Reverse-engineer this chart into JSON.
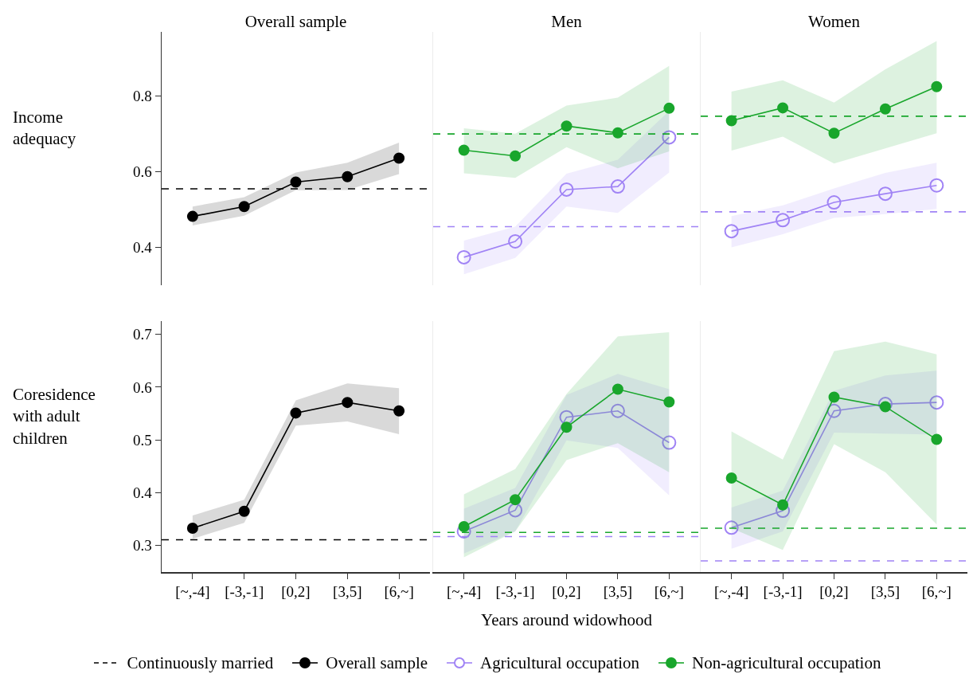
{
  "chart_data": [
    {
      "type": "line",
      "title": "Overall sample",
      "ylabel": "Income adequacy",
      "categories": [
        "[~,-4]",
        "[-3,-1]",
        "[0,2]",
        "[3,5]",
        "[6,~]"
      ],
      "ylim": [
        0.3,
        0.97
      ],
      "yticks": [
        0.4,
        0.6,
        0.8
      ],
      "tick_labels": "y",
      "grid": false,
      "marker": "circle",
      "legend": "bottom",
      "series": [
        {
          "name": "Overall sample",
          "color": "#000000",
          "values": [
            0.482,
            0.508,
            0.573,
            0.587,
            0.636
          ],
          "lower": [
            0.458,
            0.484,
            0.551,
            0.552,
            0.594
          ],
          "upper": [
            0.508,
            0.533,
            0.598,
            0.624,
            0.677
          ]
        }
      ],
      "ref_lines": [
        {
          "axis": "y",
          "value": 0.555,
          "label": "Continuously married",
          "color": "#000000",
          "line_style": "dashed"
        }
      ]
    },
    {
      "type": "line",
      "title": "Men",
      "categories": [
        "[~,-4]",
        "[-3,-1]",
        "[0,2]",
        "[3,5]",
        "[6,~]"
      ],
      "ylim": [
        0.3,
        0.97
      ],
      "yticks": [
        0.4,
        0.6,
        0.8
      ],
      "tick_labels": false,
      "grid": false,
      "marker": "circle",
      "legend": "bottom",
      "series": [
        {
          "name": "Agricultural occupation",
          "color": "#a083f5",
          "marker": "circle-open",
          "values": [
            0.374,
            0.416,
            0.553,
            0.561,
            0.691
          ],
          "lower": [
            0.329,
            0.372,
            0.508,
            0.491,
            0.598
          ],
          "upper": [
            0.418,
            0.455,
            0.595,
            0.632,
            0.761
          ]
        },
        {
          "name": "Non-agricultural occupation",
          "color": "#19a62c",
          "values": [
            0.657,
            0.642,
            0.721,
            0.703,
            0.768
          ],
          "lower": [
            0.596,
            0.584,
            0.665,
            0.609,
            0.654
          ],
          "upper": [
            0.715,
            0.701,
            0.775,
            0.796,
            0.88
          ]
        }
      ],
      "ref_lines": [
        {
          "axis": "y",
          "value": 0.7,
          "color": "#19a62c",
          "line_style": "dashed"
        },
        {
          "axis": "y",
          "value": 0.455,
          "color": "#a083f5",
          "line_style": "dashed"
        }
      ]
    },
    {
      "type": "line",
      "title": "Women",
      "categories": [
        "[~,-4]",
        "[-3,-1]",
        "[0,2]",
        "[3,5]",
        "[6,~]"
      ],
      "ylim": [
        0.3,
        0.97
      ],
      "yticks": [
        0.4,
        0.6,
        0.8
      ],
      "tick_labels": false,
      "grid": false,
      "marker": "circle",
      "legend": "bottom",
      "series": [
        {
          "name": "Agricultural occupation",
          "color": "#a083f5",
          "marker": "circle-open",
          "values": [
            0.443,
            0.472,
            0.519,
            0.542,
            0.564
          ],
          "lower": [
            0.4,
            0.435,
            0.478,
            0.488,
            0.502
          ],
          "upper": [
            0.483,
            0.511,
            0.556,
            0.597,
            0.624
          ]
        },
        {
          "name": "Non-agricultural occupation",
          "color": "#19a62c",
          "values": [
            0.735,
            0.769,
            0.702,
            0.766,
            0.825
          ],
          "lower": [
            0.656,
            0.693,
            0.622,
            0.662,
            0.702
          ],
          "upper": [
            0.812,
            0.842,
            0.783,
            0.871,
            0.946
          ]
        }
      ],
      "ref_lines": [
        {
          "axis": "y",
          "value": 0.747,
          "color": "#19a62c",
          "line_style": "dashed"
        },
        {
          "axis": "y",
          "value": 0.494,
          "color": "#a083f5",
          "line_style": "dashed"
        }
      ]
    },
    {
      "type": "line",
      "ylabel": "Coresidence with adult children",
      "categories": [
        "[~,-4]",
        "[-3,-1]",
        "[0,2]",
        "[3,5]",
        "[6,~]"
      ],
      "ylim": [
        0.25,
        0.725
      ],
      "yticks": [
        0.3,
        0.4,
        0.5,
        0.6,
        0.7
      ],
      "grid": false,
      "marker": "circle",
      "legend": "bottom",
      "series": [
        {
          "name": "Overall sample",
          "color": "#000000",
          "values": [
            0.333,
            0.365,
            0.551,
            0.571,
            0.555
          ],
          "lower": [
            0.313,
            0.343,
            0.527,
            0.535,
            0.511
          ],
          "upper": [
            0.357,
            0.387,
            0.575,
            0.607,
            0.598
          ]
        }
      ],
      "ref_lines": [
        {
          "axis": "y",
          "value": 0.311,
          "color": "#000000",
          "line_style": "dashed"
        }
      ]
    },
    {
      "type": "line",
      "xlabel": "Years around widowhood",
      "categories": [
        "[~,-4]",
        "[-3,-1]",
        "[0,2]",
        "[3,5]",
        "[6,~]"
      ],
      "ylim": [
        0.25,
        0.725
      ],
      "yticks": [
        0.3,
        0.4,
        0.5,
        0.6,
        0.7
      ],
      "tick_labels": "x",
      "grid": false,
      "marker": "circle",
      "legend": "bottom",
      "series": [
        {
          "name": "Agricultural occupation",
          "color": "#a083f5",
          "marker": "circle-open",
          "values": [
            0.327,
            0.367,
            0.543,
            0.555,
            0.495
          ],
          "lower": [
            0.285,
            0.327,
            0.499,
            0.485,
            0.395
          ],
          "upper": [
            0.37,
            0.409,
            0.585,
            0.625,
            0.596
          ]
        },
        {
          "name": "Non-agricultural occupation",
          "color": "#19a62c",
          "values": [
            0.336,
            0.387,
            0.524,
            0.596,
            0.572
          ],
          "lower": [
            0.278,
            0.327,
            0.462,
            0.494,
            0.439
          ],
          "upper": [
            0.397,
            0.445,
            0.587,
            0.696,
            0.704
          ]
        }
      ],
      "ref_lines": [
        {
          "axis": "y",
          "value": 0.325,
          "color": "#19a62c",
          "line_style": "dashed"
        },
        {
          "axis": "y",
          "value": 0.317,
          "color": "#a083f5",
          "line_style": "dashed"
        }
      ]
    },
    {
      "type": "line",
      "categories": [
        "[~,-4]",
        "[-3,-1]",
        "[0,2]",
        "[3,5]",
        "[6,~]"
      ],
      "ylim": [
        0.25,
        0.725
      ],
      "yticks": [
        0.3,
        0.4,
        0.5,
        0.6,
        0.7
      ],
      "tick_labels": "x",
      "grid": false,
      "marker": "circle",
      "legend": "bottom",
      "series": [
        {
          "name": "Agricultural occupation",
          "color": "#a083f5",
          "marker": "circle-open",
          "values": [
            0.334,
            0.366,
            0.555,
            0.568,
            0.571
          ],
          "lower": [
            0.294,
            0.327,
            0.514,
            0.512,
            0.51
          ],
          "upper": [
            0.372,
            0.404,
            0.593,
            0.622,
            0.631
          ]
        },
        {
          "name": "Non-agricultural occupation",
          "color": "#19a62c",
          "values": [
            0.428,
            0.377,
            0.581,
            0.563,
            0.501
          ],
          "lower": [
            0.333,
            0.292,
            0.492,
            0.439,
            0.34
          ],
          "upper": [
            0.516,
            0.463,
            0.668,
            0.686,
            0.662
          ]
        }
      ],
      "ref_lines": [
        {
          "axis": "y",
          "value": 0.333,
          "color": "#19a62c",
          "line_style": "dashed"
        },
        {
          "axis": "y",
          "value": 0.271,
          "color": "#a083f5",
          "line_style": "dashed"
        }
      ]
    }
  ]
}
